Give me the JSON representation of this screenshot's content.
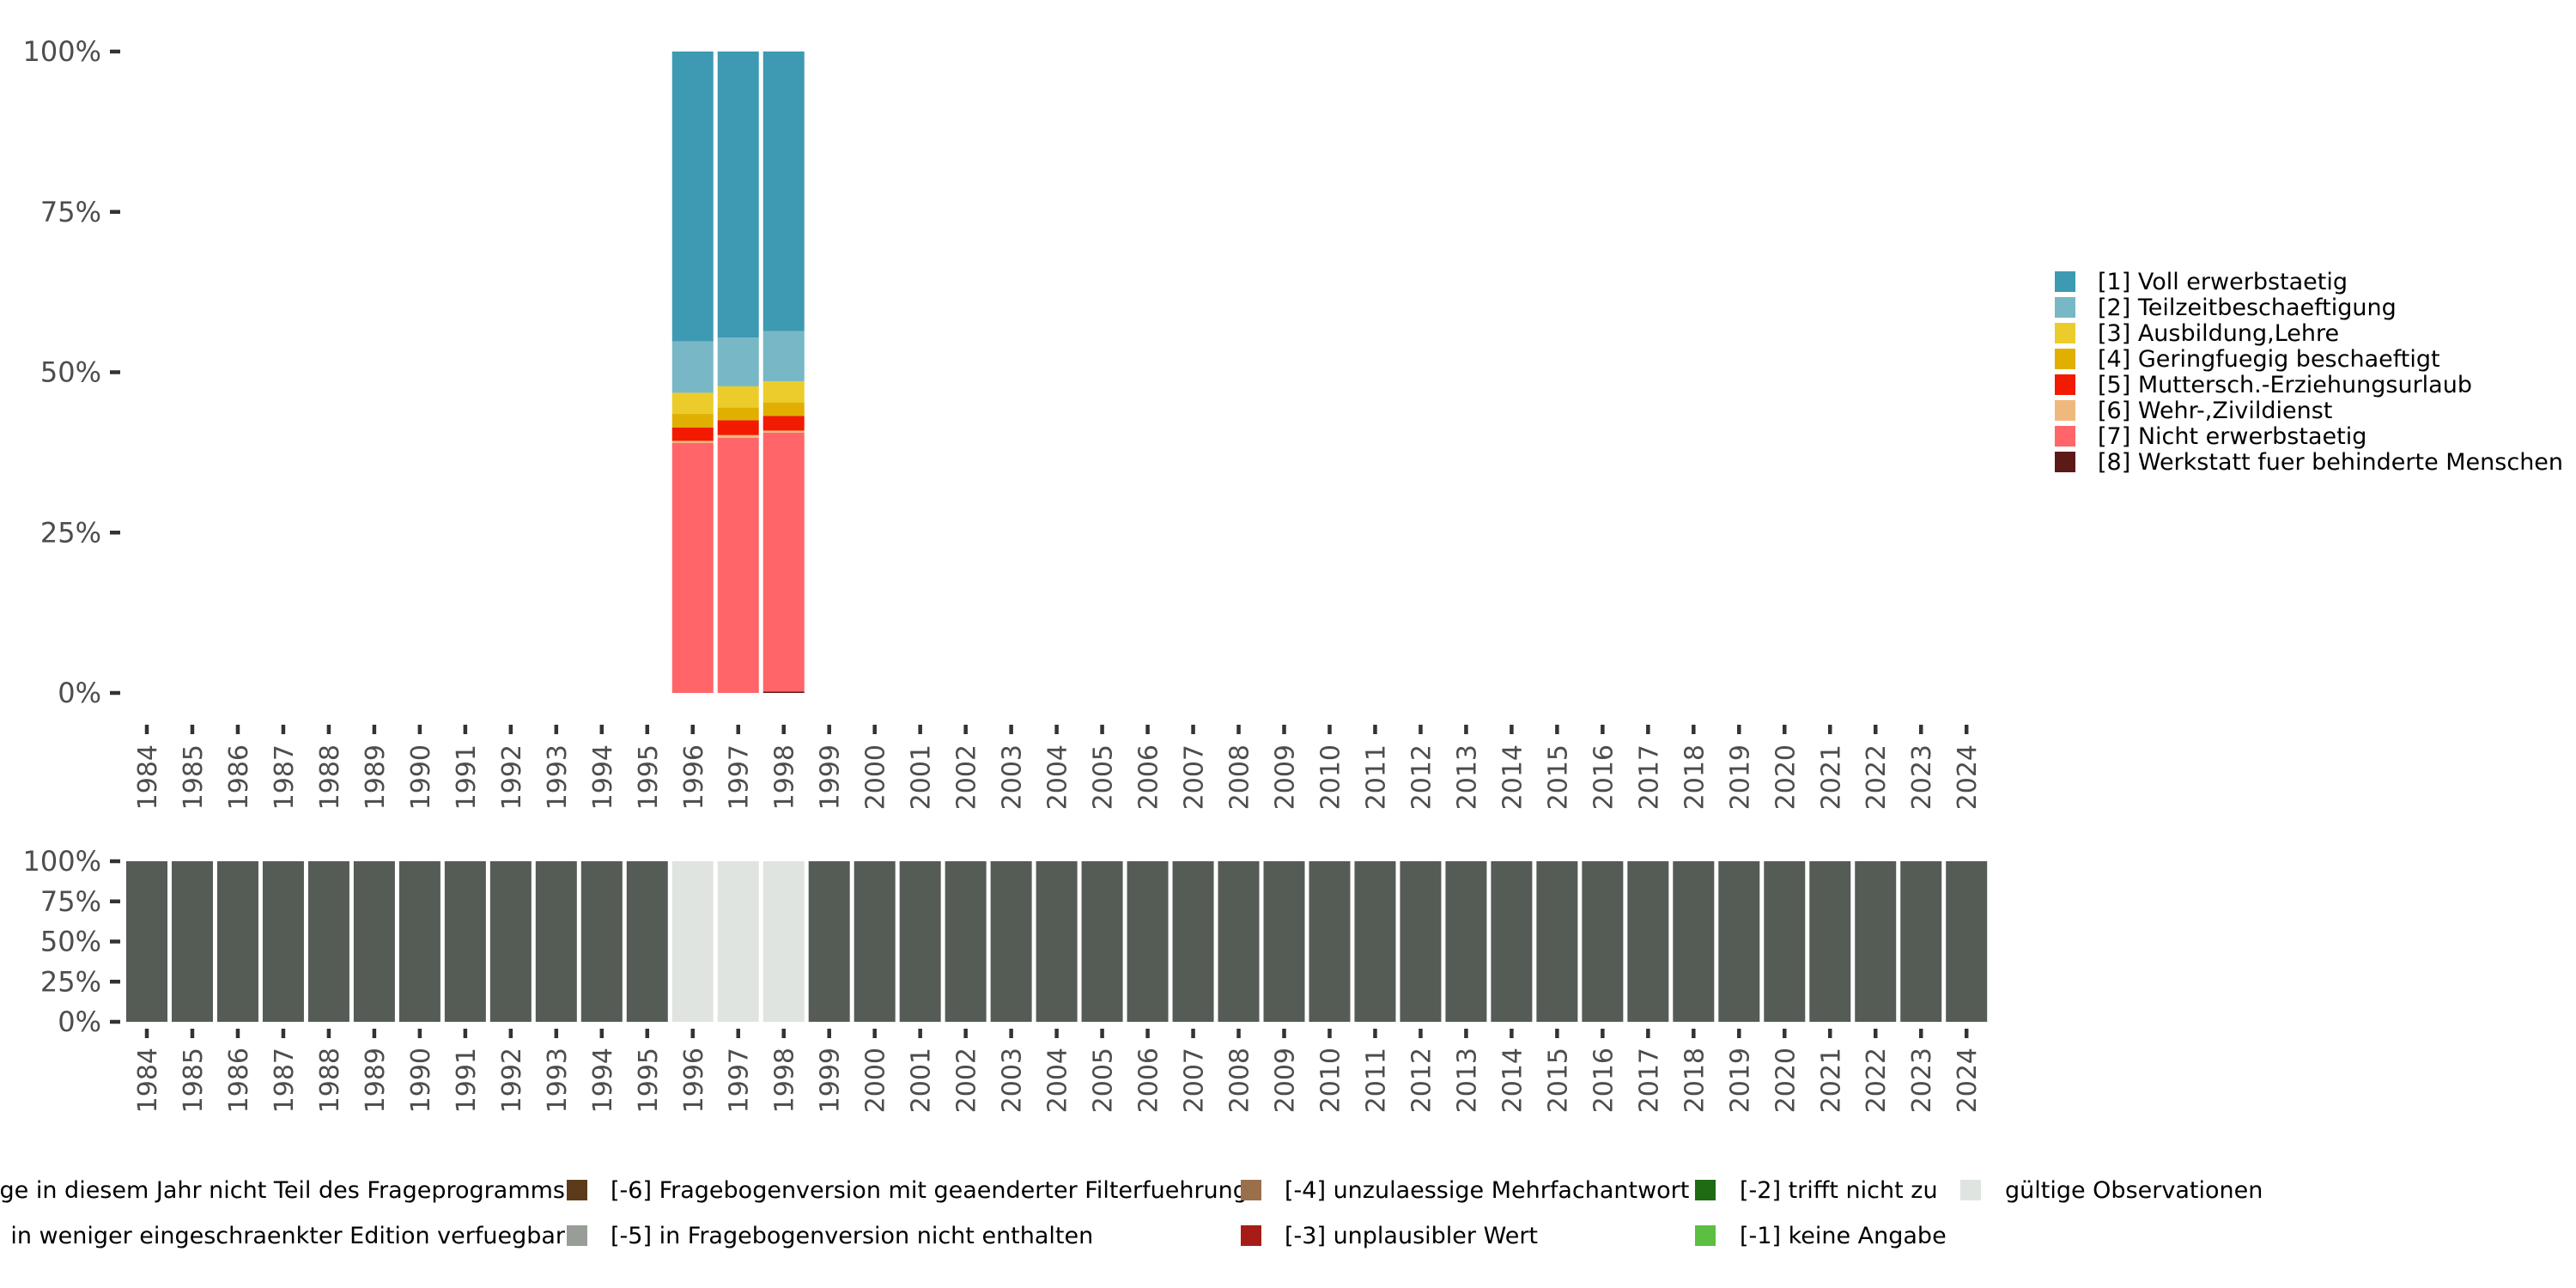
{
  "chart_data": [
    {
      "type": "bar",
      "stacked": true,
      "title": "",
      "xlabel": "",
      "ylabel": "",
      "ylim": [
        0,
        100
      ],
      "y_ticks": [
        "0%",
        "25%",
        "50%",
        "75%",
        "100%"
      ],
      "grid": false,
      "legend_position": "right",
      "categories": [
        "1984",
        "1985",
        "1986",
        "1987",
        "1988",
        "1989",
        "1990",
        "1991",
        "1992",
        "1993",
        "1994",
        "1995",
        "1996",
        "1997",
        "1998",
        "1999",
        "2000",
        "2001",
        "2002",
        "2003",
        "2004",
        "2005",
        "2006",
        "2007",
        "2008",
        "2009",
        "2010",
        "2011",
        "2012",
        "2013",
        "2014",
        "2015",
        "2016",
        "2017",
        "2018",
        "2019",
        "2020",
        "2021",
        "2022",
        "2023",
        "2024"
      ],
      "series": [
        {
          "name": "[1] Voll erwerbstaetig",
          "color": "#3D9AB2",
          "values": {
            "1996": 45.2,
            "1997": 44.6,
            "1998": 43.6
          }
        },
        {
          "name": "[2] Teilzeitbeschaeftigung",
          "color": "#78B7C5",
          "values": {
            "1996": 8.0,
            "1997": 7.6,
            "1998": 7.8
          }
        },
        {
          "name": "[3] Ausbildung,Lehre",
          "color": "#EBCC2A",
          "values": {
            "1996": 3.3,
            "1997": 3.3,
            "1998": 3.3
          }
        },
        {
          "name": "[4] Geringfuegig beschaeftigt",
          "color": "#E1AF00",
          "values": {
            "1996": 2.1,
            "1997": 2.0,
            "1998": 2.1
          }
        },
        {
          "name": "[5] Muttersch.-Erziehungsurlaub",
          "color": "#F21A00",
          "values": {
            "1996": 2.1,
            "1997": 2.3,
            "1998": 2.3
          }
        },
        {
          "name": "[6] Wehr-,Zivildienst",
          "color": "#EFB97E",
          "values": {
            "1996": 0.3,
            "1997": 0.4,
            "1998": 0.3
          }
        },
        {
          "name": "[7] Nicht erwerbstaetig",
          "color": "#FF6569",
          "values": {
            "1996": 39.0,
            "1997": 39.8,
            "1998": 40.4
          }
        },
        {
          "name": "[8] Werkstatt fuer behinderte Menschen",
          "color": "#5B1A18",
          "values": {
            "1996": 0.0,
            "1997": 0.0,
            "1998": 0.2
          }
        }
      ]
    },
    {
      "type": "bar",
      "stacked": true,
      "title": "",
      "xlabel": "",
      "ylabel": "",
      "ylim": [
        0,
        100
      ],
      "y_ticks": [
        "0%",
        "25%",
        "50%",
        "75%",
        "100%"
      ],
      "grid": false,
      "legend_position": "bottom",
      "categories": [
        "1984",
        "1985",
        "1986",
        "1987",
        "1988",
        "1989",
        "1990",
        "1991",
        "1992",
        "1993",
        "1994",
        "1995",
        "1996",
        "1997",
        "1998",
        "1999",
        "2000",
        "2001",
        "2002",
        "2003",
        "2004",
        "2005",
        "2006",
        "2007",
        "2008",
        "2009",
        "2010",
        "2011",
        "2012",
        "2013",
        "2014",
        "2015",
        "2016",
        "2017",
        "2018",
        "2019",
        "2020",
        "2021",
        "2022",
        "2023",
        "2024"
      ],
      "series": [
        {
          "name": "ge in diesem Jahr nicht Teil des Frageprogramms",
          "color": "#555B55",
          "values": [
            100,
            100,
            100,
            100,
            100,
            100,
            100,
            100,
            100,
            100,
            100,
            100,
            0,
            0,
            0,
            100,
            100,
            100,
            100,
            100,
            100,
            100,
            100,
            100,
            100,
            100,
            100,
            100,
            100,
            100,
            100,
            100,
            100,
            100,
            100,
            100,
            100,
            100,
            100,
            100,
            100
          ]
        },
        {
          "name": "gültige Observationen",
          "color": "#E0E4E0",
          "values": [
            0,
            0,
            0,
            0,
            0,
            0,
            0,
            0,
            0,
            0,
            0,
            0,
            100,
            100,
            100,
            0,
            0,
            0,
            0,
            0,
            0,
            0,
            0,
            0,
            0,
            0,
            0,
            0,
            0,
            0,
            0,
            0,
            0,
            0,
            0,
            0,
            0,
            0,
            0,
            0,
            0
          ]
        }
      ]
    }
  ],
  "bottom_legend": [
    {
      "label": "ge in diesem Jahr nicht Teil des Frageprogramms",
      "color": "#555B55",
      "swatch": false
    },
    {
      "label": " in weniger eingeschraenkter Edition verfuegbar",
      "color": "#555B55",
      "swatch": false
    },
    {
      "label": "[-6] Fragebogenversion mit geaenderter Filterfuehrung",
      "color": "#5C3A1A",
      "swatch": true
    },
    {
      "label": "[-5] in Fragebogenversion nicht enthalten",
      "color": "#989D98",
      "swatch": true
    },
    {
      "label": "[-4] unzulaessige Mehrfachantwort",
      "color": "#9A6F4C",
      "swatch": true
    },
    {
      "label": "[-3] unplausibler Wert",
      "color": "#A81C17",
      "swatch": true
    },
    {
      "label": "[-2] trifft nicht zu",
      "color": "#1D6B13",
      "swatch": true
    },
    {
      "label": "[-1] keine Angabe",
      "color": "#5BBF42",
      "swatch": true
    },
    {
      "label": "gültige Observationen",
      "color": "#E0E4E0",
      "swatch": true
    }
  ]
}
